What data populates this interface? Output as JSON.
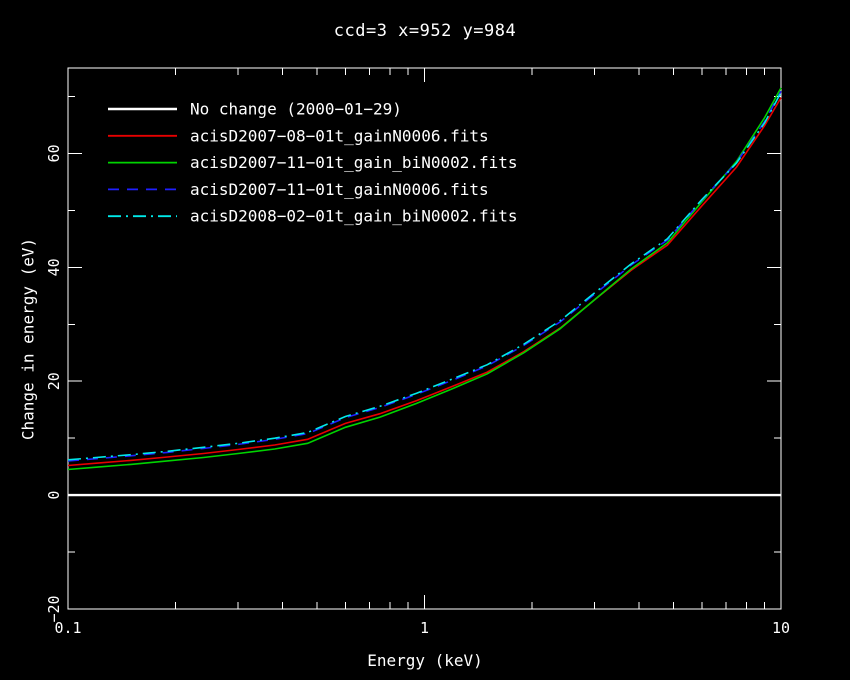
{
  "chart_data": {
    "type": "line",
    "title": "ccd=3 x=952 y=984",
    "xlabel": "Energy (keV)",
    "ylabel": "Change in energy (eV)",
    "x_scale": "log",
    "y_scale": "linear",
    "xlim": [
      0.1,
      10
    ],
    "ylim": [
      -20,
      75
    ],
    "grid": false,
    "legend_position": "top-left",
    "x_ticks": {
      "major": [
        0.1,
        1,
        10
      ],
      "labels": [
        "0.1",
        "1",
        "10"
      ],
      "minor": [
        0.2,
        0.3,
        0.4,
        0.5,
        0.6,
        0.7,
        0.8,
        0.9,
        2,
        3,
        4,
        5,
        6,
        7,
        8,
        9
      ]
    },
    "y_ticks": {
      "major": [
        -20,
        0,
        20,
        40,
        60
      ],
      "labels": [
        "−20",
        "0",
        "20",
        "40",
        "60"
      ],
      "minor": [
        -10,
        10,
        30,
        50,
        70
      ]
    },
    "x": [
      0.1,
      0.12,
      0.15,
      0.19,
      0.24,
      0.3,
      0.38,
      0.47,
      0.6,
      0.75,
      0.95,
      1.2,
      1.5,
      1.9,
      2.4,
      3.0,
      3.8,
      4.8,
      6.0,
      7.5,
      9.0,
      10.0
    ],
    "series": [
      {
        "name": "No change (2000−01−29)",
        "color": "#ffffff",
        "linestyle": "solid",
        "linewidth": 2.4,
        "values": [
          0,
          0,
          0,
          0,
          0,
          0,
          0,
          0,
          0,
          0,
          0,
          0,
          0,
          0,
          0,
          0,
          0,
          0,
          0,
          0,
          0,
          0
        ]
      },
      {
        "name": "acisD2007−08−01t_gainN0006.fits",
        "color": "#e80000",
        "linestyle": "solid",
        "linewidth": 1.6,
        "values": [
          5.2,
          5.6,
          6.1,
          6.7,
          7.3,
          8.0,
          8.8,
          9.8,
          12.6,
          14.3,
          16.6,
          19.1,
          21.6,
          25.2,
          29.3,
          34.3,
          39.5,
          43.9,
          50.8,
          57.6,
          64.9,
          69.8
        ]
      },
      {
        "name": "acisD2007−11−01t_gain_biN0002.fits",
        "color": "#00d300",
        "linestyle": "solid",
        "linewidth": 1.6,
        "values": [
          4.5,
          4.9,
          5.4,
          6.0,
          6.6,
          7.3,
          8.1,
          9.1,
          11.9,
          13.7,
          16.1,
          18.7,
          21.3,
          25.0,
          29.2,
          34.3,
          39.7,
          44.3,
          51.5,
          58.6,
          66.3,
          71.5
        ]
      },
      {
        "name": "acisD2007−11−01t_gainN0006.fits",
        "color": "#1f1fff",
        "linestyle": "dashed",
        "linewidth": 1.6,
        "values": [
          6.0,
          6.4,
          6.9,
          7.5,
          8.2,
          8.9,
          9.8,
          10.8,
          13.6,
          15.4,
          17.7,
          20.2,
          22.7,
          26.3,
          30.4,
          35.3,
          40.4,
          44.8,
          51.8,
          58.4,
          65.6,
          70.9
        ]
      },
      {
        "name": "acisD2008−02−01t_gain_biN0002.fits",
        "color": "#00eaea",
        "linestyle": "dashdot",
        "linewidth": 1.6,
        "values": [
          6.2,
          6.6,
          7.1,
          7.7,
          8.4,
          9.1,
          10.0,
          11.0,
          13.8,
          15.6,
          17.9,
          20.4,
          22.9,
          26.5,
          30.6,
          35.5,
          40.6,
          45.0,
          51.9,
          58.3,
          65.4,
          70.7
        ]
      }
    ]
  },
  "colors": {
    "background": "#000000",
    "axis": "#ffffff"
  }
}
